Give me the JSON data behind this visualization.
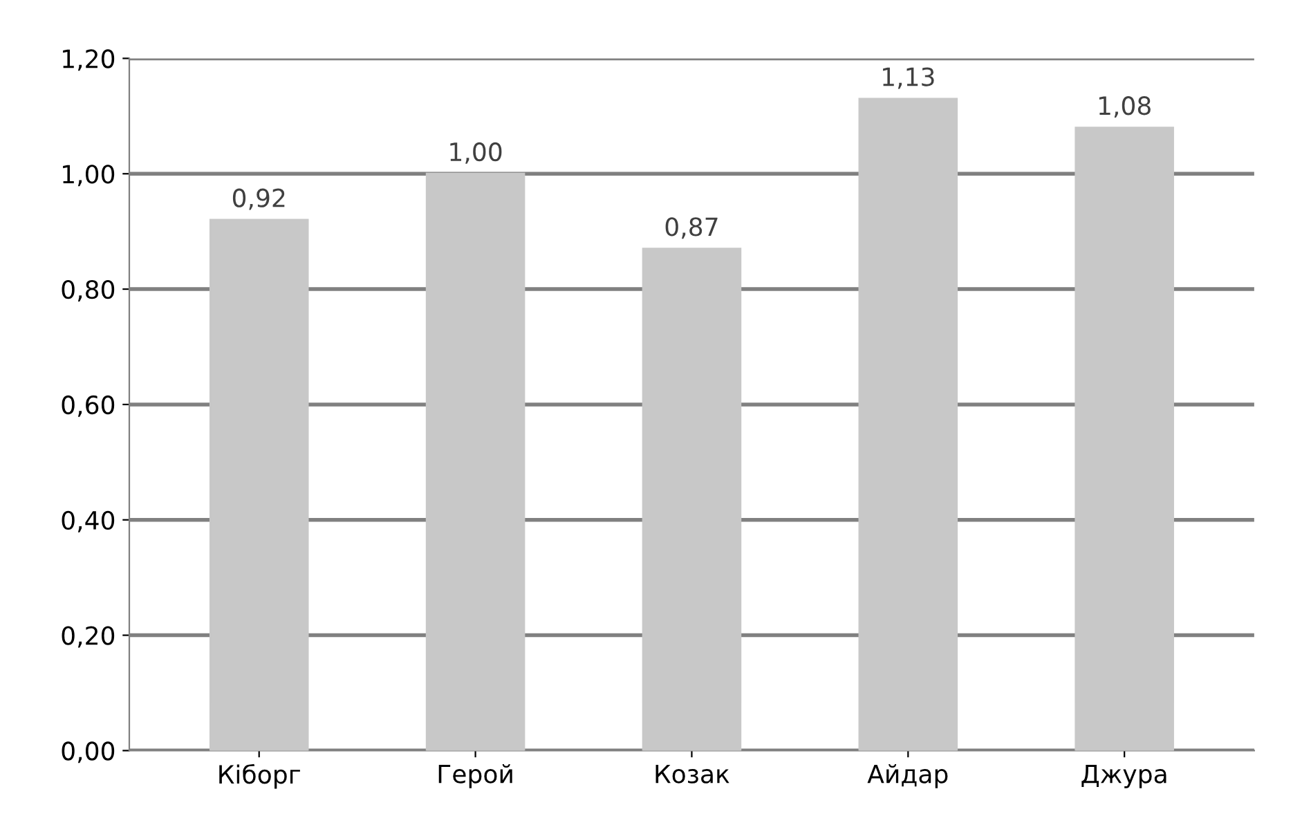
{
  "chart_data": {
    "type": "bar",
    "categories": [
      "Кіборг",
      "Герой",
      "Козак",
      "Айдар",
      "Джура"
    ],
    "values": [
      0.92,
      1.0,
      0.87,
      1.13,
      1.08
    ],
    "value_labels": [
      "0,92",
      "1,00",
      "0,87",
      "1,13",
      "1,08"
    ],
    "color": "#c8c8c8",
    "ylim": [
      0,
      1.2
    ],
    "yticks": [
      {
        "value": 0,
        "label": "0,00"
      },
      {
        "value": 0.2,
        "label": "0,20"
      },
      {
        "value": 0.4,
        "label": "0,40"
      },
      {
        "value": 0.6,
        "label": "0,60"
      },
      {
        "value": 0.8,
        "label": "0,80"
      },
      {
        "value": 1.0,
        "label": "1,00"
      },
      {
        "value": 1.2,
        "label": "1,20"
      }
    ],
    "grid": "y",
    "legend": false
  }
}
